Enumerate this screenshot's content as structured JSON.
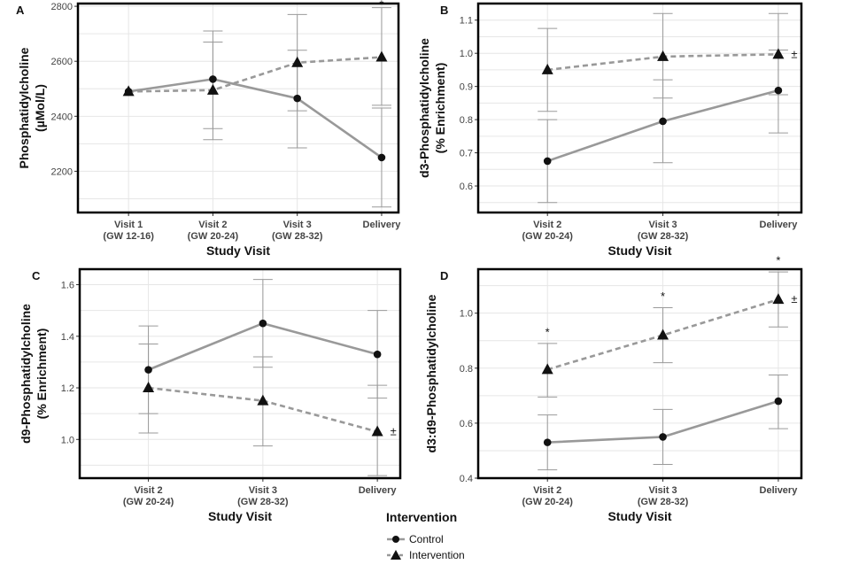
{
  "legend": {
    "title": "Intervention",
    "items": [
      {
        "label": "Control",
        "marker": "circle",
        "line": "solid"
      },
      {
        "label": "Intervention",
        "marker": "triangle",
        "line": "dashed"
      }
    ]
  },
  "colors": {
    "line": "#999999",
    "marker": "#111111",
    "grid": "#e6e6e6",
    "errorbar": "#9a9a9a",
    "frame": "#000000"
  },
  "chart_data": [
    {
      "type": "line",
      "panel": "A",
      "xlabel": "Study Visit",
      "ylabel_lines": [
        "Phosphatidylcholine",
        "(µMol/L)"
      ],
      "categories": [
        [
          "Visit 1",
          "(GW 12-16)"
        ],
        [
          "Visit 2",
          "(GW 20-24)"
        ],
        [
          "Visit 3",
          "(GW 28-32)"
        ],
        [
          "Delivery",
          ""
        ]
      ],
      "ylim": [
        2050,
        2810
      ],
      "yticks": [
        2200,
        2400,
        2600,
        2800
      ],
      "series": [
        {
          "name": "Control",
          "values": [
            2490,
            2535,
            2465,
            2250
          ],
          "err_low": [
            2490,
            2355,
            2285,
            2070
          ],
          "err_high": [
            2490,
            2670,
            2640,
            2430
          ]
        },
        {
          "name": "Intervention",
          "values": [
            2490,
            2495,
            2595,
            2615
          ],
          "err_low": [
            2490,
            2315,
            2420,
            2440
          ],
          "err_high": [
            2490,
            2710,
            2770,
            2795
          ]
        }
      ],
      "annotations": [
        {
          "text": "*",
          "category_index": 3,
          "y": 2805
        }
      ]
    },
    {
      "type": "line",
      "panel": "B",
      "xlabel": "Study Visit",
      "ylabel_lines": [
        "d3-Phosphatidylcholine",
        "(% Enrichment)"
      ],
      "categories": [
        [
          "Visit 2",
          "(GW 20-24)"
        ],
        [
          "Visit 3",
          "(GW 28-32)"
        ],
        [
          "Delivery",
          ""
        ]
      ],
      "ylim": [
        0.52,
        1.15
      ],
      "yticks": [
        0.6,
        0.7,
        0.8,
        0.9,
        1.0,
        1.1
      ],
      "series": [
        {
          "name": "Control",
          "values": [
            0.675,
            0.795,
            0.888
          ],
          "err_low": [
            0.55,
            0.67,
            0.76
          ],
          "err_high": [
            0.8,
            0.92,
            1.01
          ]
        },
        {
          "name": "Intervention",
          "values": [
            0.95,
            0.99,
            0.997
          ],
          "err_low": [
            0.825,
            0.865,
            0.875
          ],
          "err_high": [
            1.075,
            1.12,
            1.12
          ]
        }
      ],
      "annotations": [
        {
          "text": "±",
          "category_index": 2,
          "y": 0.997,
          "side": "right"
        }
      ]
    },
    {
      "type": "line",
      "panel": "C",
      "xlabel": "Study Visit",
      "ylabel_lines": [
        "d9-Phosphatidylcholine",
        "(% Enrichment)"
      ],
      "categories": [
        [
          "Visit 2",
          "(GW 20-24)"
        ],
        [
          "Visit 3",
          "(GW 28-32)"
        ],
        [
          "Delivery",
          ""
        ]
      ],
      "ylim": [
        0.85,
        1.66
      ],
      "yticks": [
        1.0,
        1.2,
        1.4,
        1.6
      ],
      "series": [
        {
          "name": "Control",
          "values": [
            1.27,
            1.45,
            1.33
          ],
          "err_low": [
            1.1,
            1.28,
            1.16
          ],
          "err_high": [
            1.44,
            1.62,
            1.5
          ]
        },
        {
          "name": "Intervention",
          "values": [
            1.2,
            1.15,
            1.03
          ],
          "err_low": [
            1.025,
            0.975,
            0.86
          ],
          "err_high": [
            1.37,
            1.32,
            1.21
          ]
        }
      ],
      "annotations": [
        {
          "text": "±",
          "category_index": 2,
          "y": 1.03,
          "side": "right"
        }
      ]
    },
    {
      "type": "line",
      "panel": "D",
      "xlabel": "Study Visit",
      "ylabel_lines": [
        "d3:d9-Phosphatidylcholine"
      ],
      "categories": [
        [
          "Visit 2",
          "(GW 20-24)"
        ],
        [
          "Visit 3",
          "(GW 28-32)"
        ],
        [
          "Delivery",
          ""
        ]
      ],
      "ylim": [
        0.4,
        1.16
      ],
      "yticks": [
        0.4,
        0.6,
        0.8,
        1.0
      ],
      "series": [
        {
          "name": "Control",
          "values": [
            0.53,
            0.55,
            0.68
          ],
          "err_low": [
            0.43,
            0.45,
            0.58
          ],
          "err_high": [
            0.63,
            0.65,
            0.775
          ]
        },
        {
          "name": "Intervention",
          "values": [
            0.795,
            0.92,
            1.05
          ],
          "err_low": [
            0.695,
            0.82,
            0.95
          ],
          "err_high": [
            0.89,
            1.02,
            1.15
          ]
        }
      ],
      "annotations": [
        {
          "text": "*",
          "category_index": 0,
          "y": 0.93
        },
        {
          "text": "*",
          "category_index": 1,
          "y": 1.06
        },
        {
          "text": "*",
          "category_index": 2,
          "y": 1.19
        },
        {
          "text": "±",
          "category_index": 2,
          "y": 1.05,
          "side": "right"
        }
      ]
    }
  ]
}
